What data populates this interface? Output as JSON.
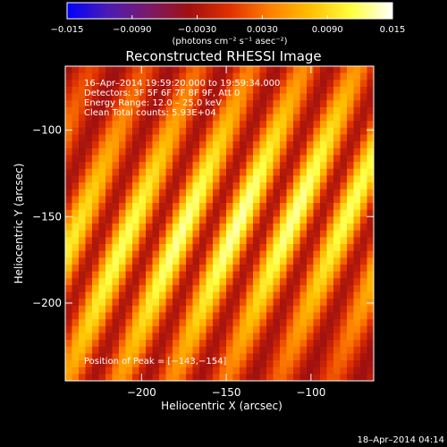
{
  "colors": {
    "background": "#000000",
    "colormap": [
      "#0000ff",
      "#4b1bb4",
      "#7a1a6a",
      "#a01010",
      "#e03000",
      "#ff8000",
      "#ffc000",
      "#ffff40",
      "#ffffff"
    ]
  },
  "chart_data": [
    {
      "type": "colorbar",
      "range": [
        -0.015,
        0.015
      ],
      "tick_values": [
        -0.015,
        -0.009,
        -0.003,
        0.003,
        0.009,
        0.015
      ],
      "tick_labels": [
        "−0.015",
        "−0.0090",
        "−0.0030",
        "0.0030",
        "0.0090",
        "0.015"
      ],
      "unit_label": "(photons cm⁻² s⁻¹ asec⁻²)"
    },
    {
      "type": "heatmap",
      "title": "Reconstructed RHESSI Image",
      "xlabel": "Heliocentric X (arcsec)",
      "ylabel": "Heliocentric Y (arcsec)",
      "xlim": [
        -245,
        -63
      ],
      "ylim": [
        -245,
        -63
      ],
      "xticks": [
        -200,
        -150,
        -100
      ],
      "xtick_labels": [
        "−200",
        "−150",
        "−100"
      ],
      "yticks": [
        -100,
        -150,
        -200
      ],
      "ytick_labels": [
        "−100",
        "−150",
        "−200"
      ],
      "grid": false,
      "pattern": "diagonal fringe stripes with bright ridge",
      "peak": [
        -143,
        -154
      ],
      "annotations": [
        "16–Apr–2014 19:59:20.000 to 19:59:34.000",
        "Detectors: 3F 5F 6F 7F 8F 9F, Att 0",
        "Energy Range: 12.0 – 25.0 keV",
        "Clean    Total counts: 5.93E+04",
        "Position of Peak = [−143,−154]"
      ]
    }
  ],
  "timestamp": "18–Apr–2014 04:14"
}
